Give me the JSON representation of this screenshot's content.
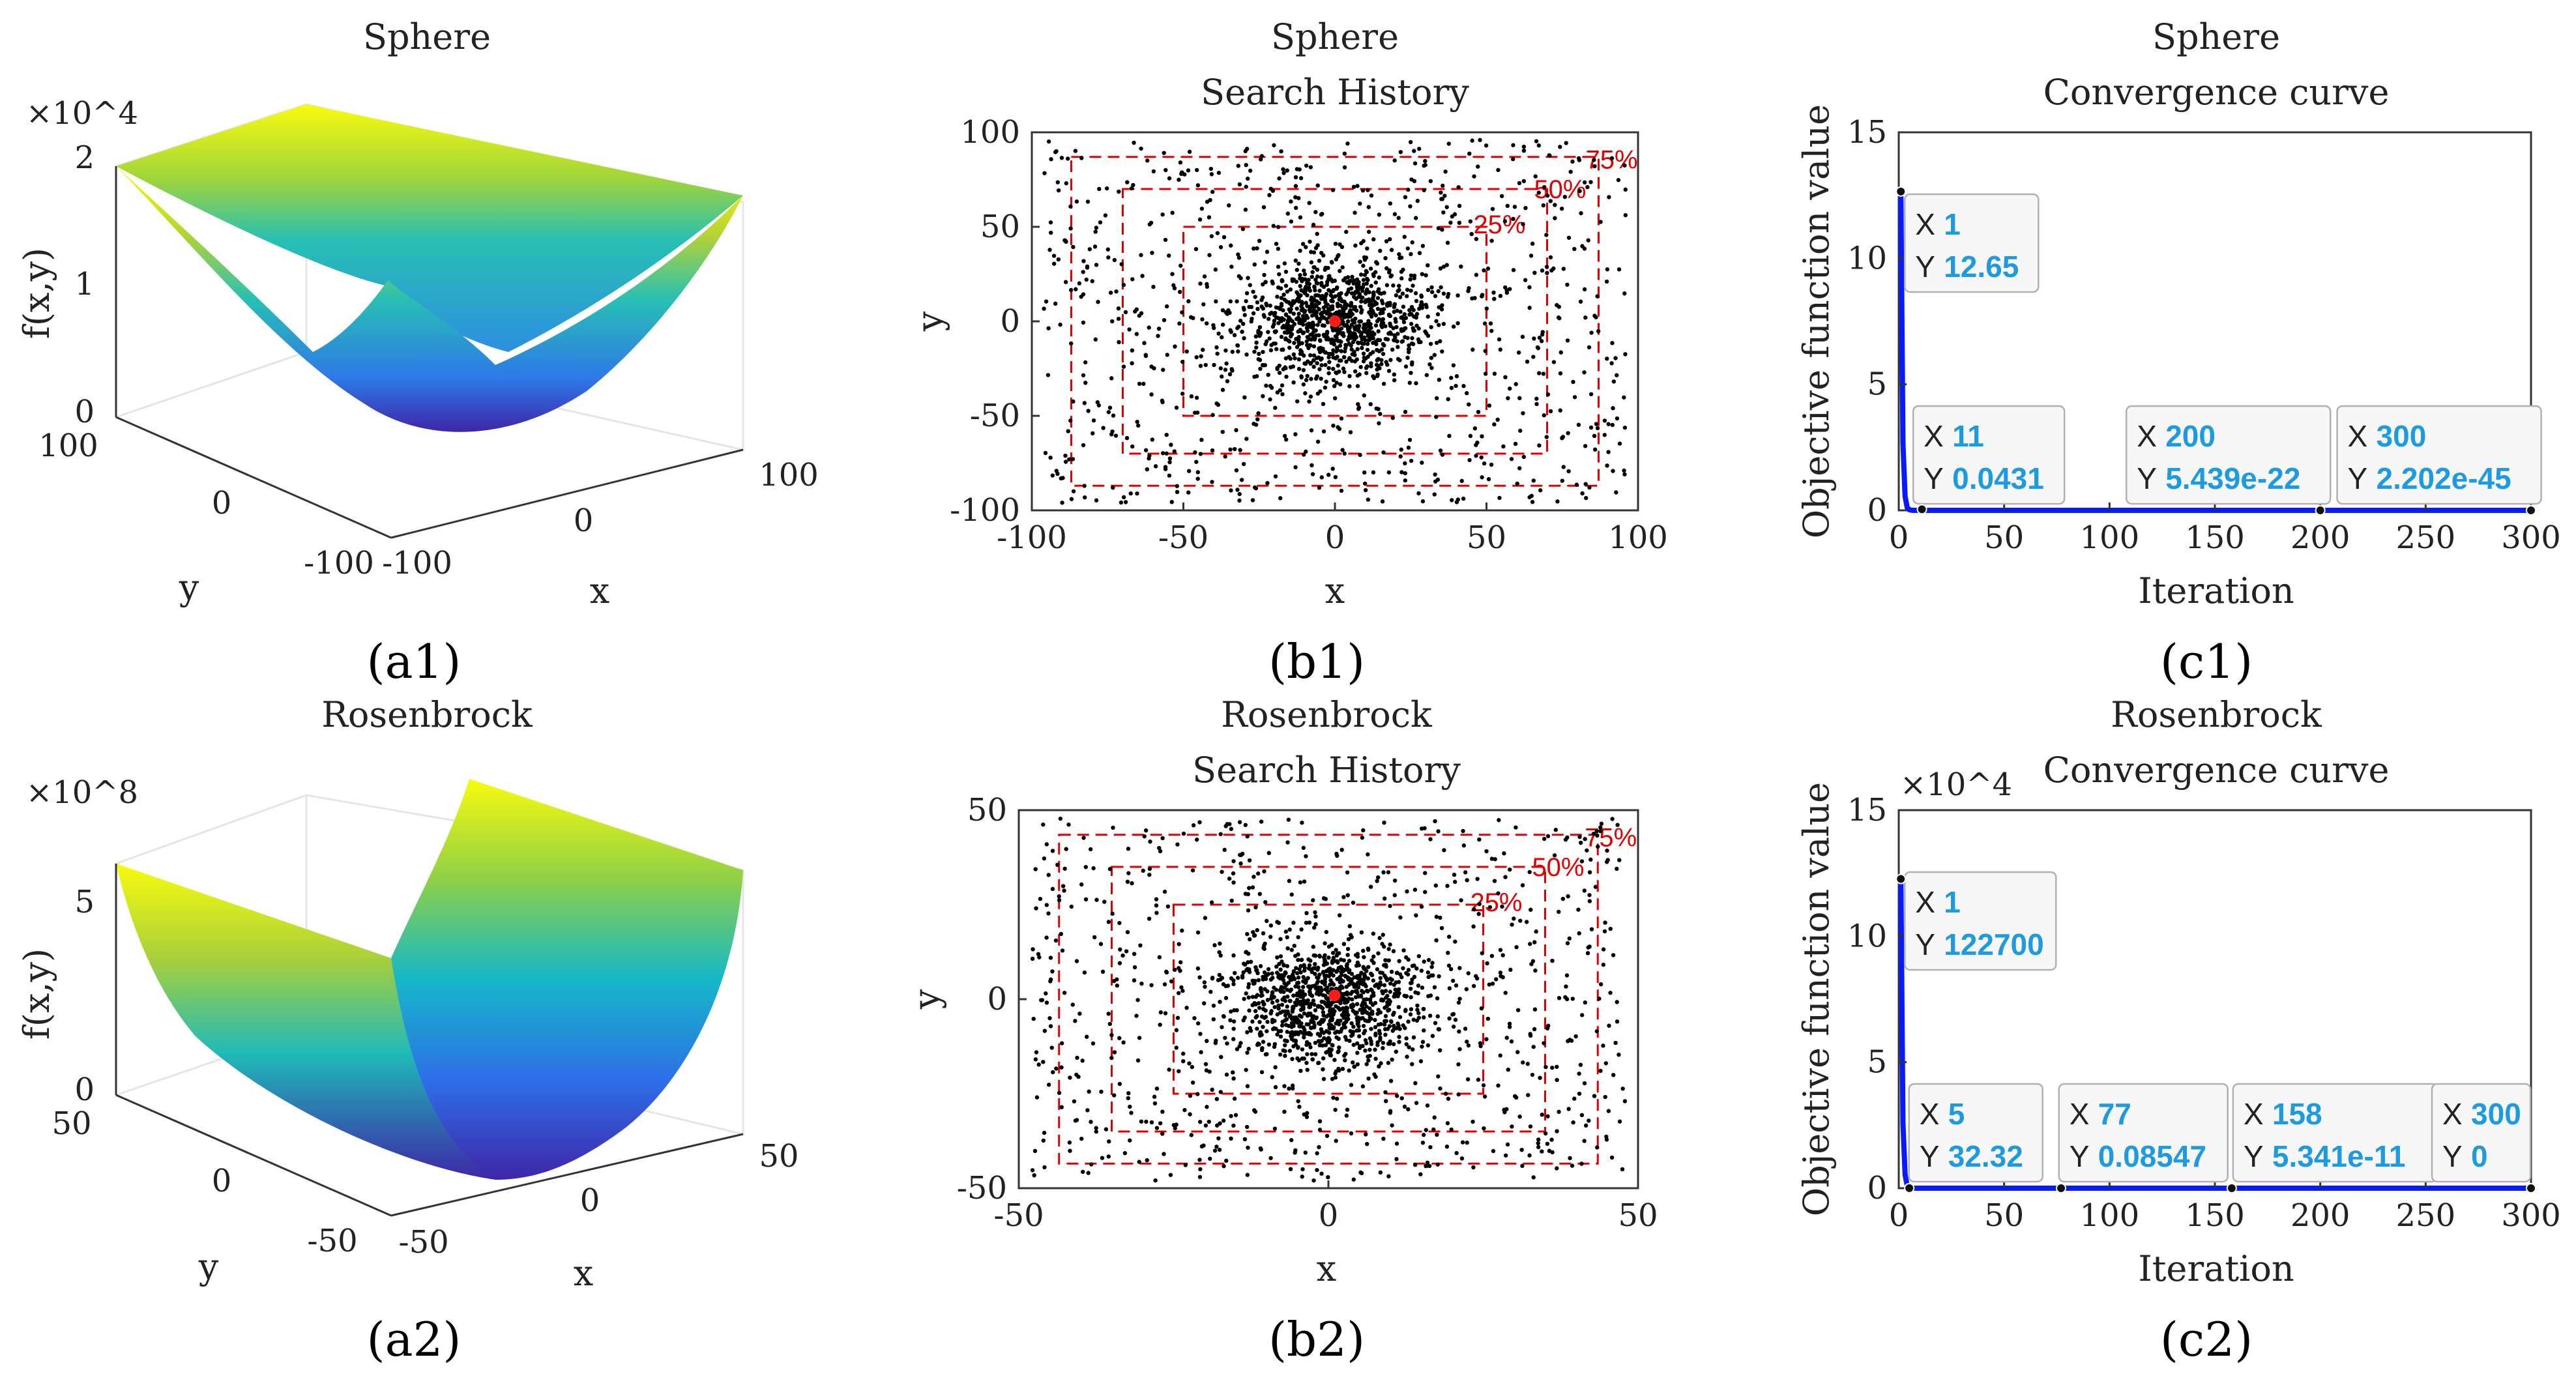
{
  "captions": [
    "(a1)",
    "(b1)",
    "(c1)",
    "(a2)",
    "(b2)",
    "(c2)"
  ],
  "chart_data": [
    {
      "id": "a1",
      "type": "surface3d",
      "caption": "(a1)",
      "title": "Sphere",
      "zlabel": "f(x,y)",
      "xlabel": "x",
      "ylabel": "y",
      "zscale": "×10^4",
      "zticks": [
        "0",
        "1",
        "2"
      ],
      "xticks": [
        "-100",
        "0",
        "100"
      ],
      "yticks": [
        "-100",
        "0",
        "100"
      ],
      "zlim": [
        0,
        20000
      ],
      "xlim": [
        -100,
        100
      ],
      "ylim": [
        -100,
        100
      ],
      "colormap": [
        "#3e26a8",
        "#2e6fe9",
        "#15b8c8",
        "#7fd04a",
        "#f9fb0e"
      ]
    },
    {
      "id": "b1",
      "type": "scatter",
      "caption": "(b1)",
      "title": [
        "Sphere",
        "Search History"
      ],
      "xlabel": "x",
      "ylabel": "y",
      "xlim": [
        -100,
        100
      ],
      "ylim": [
        -100,
        100
      ],
      "xticks": [
        "-100",
        "-50",
        "0",
        "50",
        "100"
      ],
      "yticks": [
        "100",
        "50",
        "0",
        "-50",
        "-100"
      ],
      "points": 1800,
      "spread": 30,
      "best": [
        0,
        0
      ],
      "boxes": [
        {
          "label": "25%",
          "half_width": 50
        },
        {
          "label": "50%",
          "half_width": 70
        },
        {
          "label": "75%",
          "half_width": 87
        }
      ]
    },
    {
      "id": "c1",
      "type": "line",
      "caption": "(c1)",
      "title": [
        "Sphere",
        "Convergence curve"
      ],
      "xlabel": "Iteration",
      "ylabel": "Objective function value",
      "xlim": [
        0,
        300
      ],
      "ylim": [
        0,
        15
      ],
      "xticks": [
        "0",
        "50",
        "100",
        "150",
        "200",
        "250",
        "300"
      ],
      "yticks": [
        "15",
        "10",
        "5",
        "0"
      ],
      "datatips": [
        {
          "x": 1,
          "y": 12.65,
          "x_text": "1",
          "y_text": "12.65"
        },
        {
          "x": 11,
          "y": 0.0431,
          "x_text": "11",
          "y_text": "0.0431"
        },
        {
          "x": 200,
          "y": 0,
          "x_text": "200",
          "y_text": "5.439e-22"
        },
        {
          "x": 300,
          "y": 0,
          "x_text": "300",
          "y_text": "2.202e-45"
        }
      ]
    },
    {
      "id": "a2",
      "type": "surface3d",
      "caption": "(a2)",
      "title": "Rosenbrock",
      "zlabel": "f(x,y)",
      "xlabel": "x",
      "ylabel": "y",
      "zscale": "×10^8",
      "zticks": [
        "0",
        "5"
      ],
      "xticks": [
        "-50",
        "0",
        "50"
      ],
      "yticks": [
        "-50",
        "0",
        "50"
      ],
      "xlim": [
        -50,
        50
      ],
      "ylim": [
        -50,
        50
      ],
      "colormap": [
        "#3e26a8",
        "#2e6fe9",
        "#15b8c8",
        "#7fd04a",
        "#f9fb0e"
      ]
    },
    {
      "id": "b2",
      "type": "scatter",
      "caption": "(b2)",
      "title": [
        "Rosenbrock",
        "Search History"
      ],
      "xlabel": "x",
      "ylabel": "y",
      "xlim": [
        -50,
        50
      ],
      "ylim": [
        -50,
        50
      ],
      "xticks": [
        "-50",
        "0",
        "50"
      ],
      "yticks": [
        "50",
        "0",
        "-50"
      ],
      "points": 1800,
      "spread": 15,
      "best": [
        1,
        1
      ],
      "boxes": [
        {
          "label": "25%",
          "half_width": 25
        },
        {
          "label": "50%",
          "half_width": 35
        },
        {
          "label": "75%",
          "half_width": 43.5
        }
      ]
    },
    {
      "id": "c2",
      "type": "line",
      "caption": "(c2)",
      "title": [
        "Rosenbrock",
        "Convergence curve"
      ],
      "xlabel": "Iteration",
      "ylabel": "Objective function value",
      "yscale": "×10^4",
      "xlim": [
        0,
        300
      ],
      "ylim": [
        0,
        15
      ],
      "xticks": [
        "0",
        "50",
        "100",
        "150",
        "200",
        "250",
        "300"
      ],
      "yticks": [
        "15",
        "10",
        "5",
        "0"
      ],
      "datatips": [
        {
          "x": 1,
          "y": 12.27,
          "x_text": "1",
          "y_text": "122700"
        },
        {
          "x": 5,
          "y": 0.0032,
          "x_text": "5",
          "y_text": "32.32"
        },
        {
          "x": 77,
          "y": 0,
          "x_text": "77",
          "y_text": "0.08547"
        },
        {
          "x": 158,
          "y": 0,
          "x_text": "158",
          "y_text": "5.341e-11"
        },
        {
          "x": 300,
          "y": 0,
          "x_text": "300",
          "y_text": "0"
        }
      ]
    }
  ]
}
